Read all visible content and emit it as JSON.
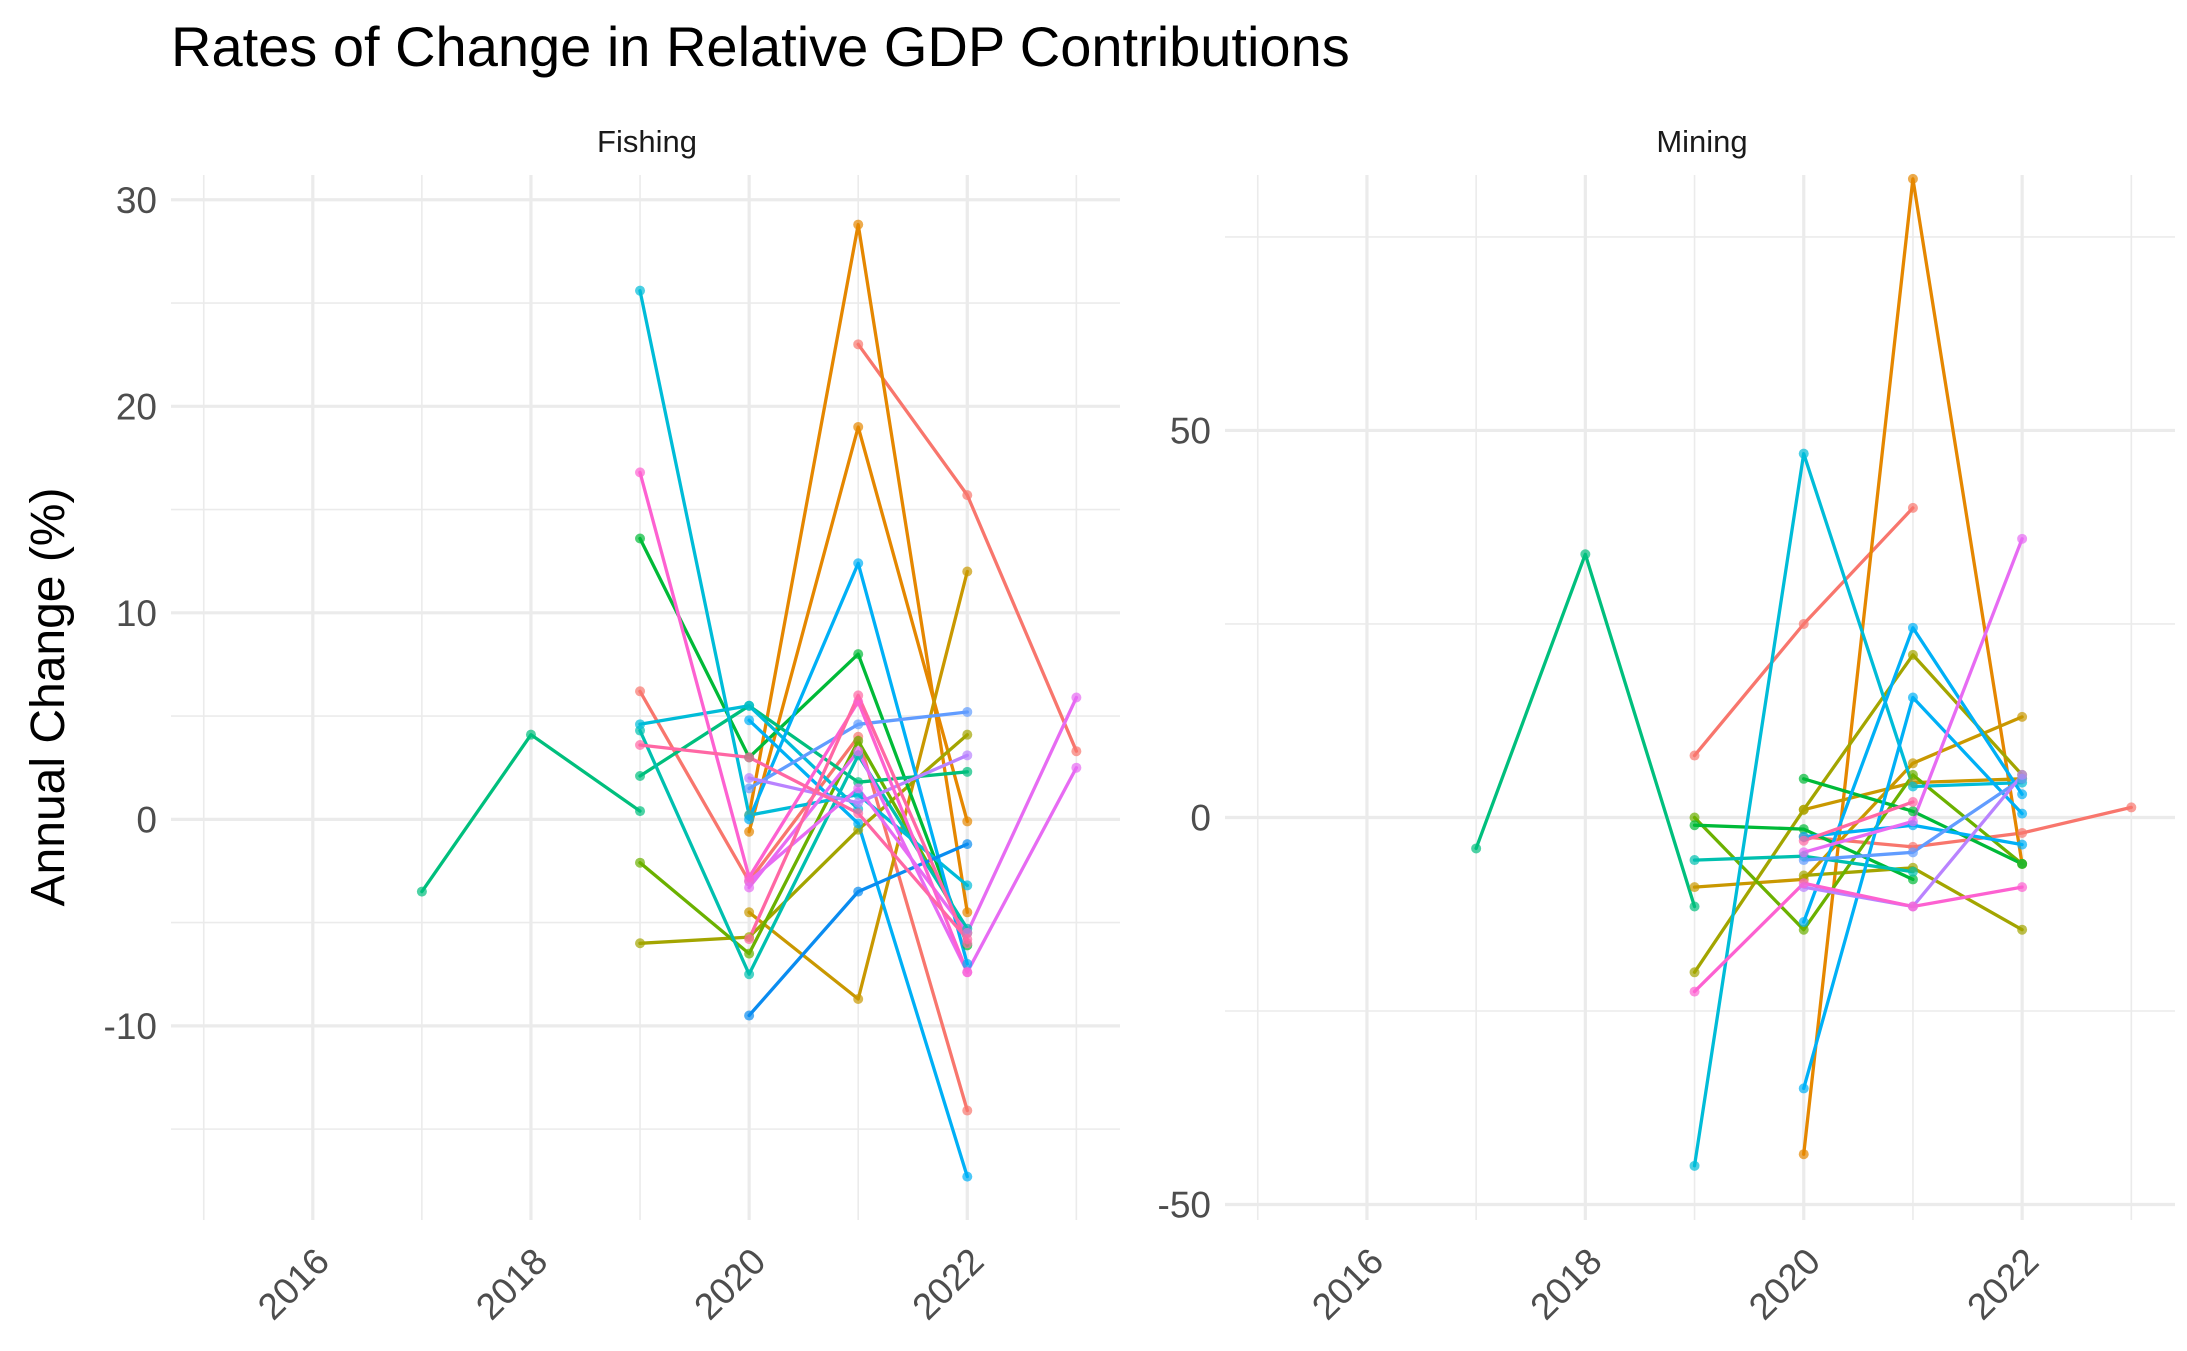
{
  "chart_data": {
    "type": "line",
    "title": "Rates of Change in Relative GDP Contributions",
    "ylabel": "Annual Change (%)",
    "xlabel": "",
    "grid": true,
    "legend": "none",
    "panels": [
      {
        "name": "Fishing",
        "xlim": [
          2014.7,
          2023.4
        ],
        "ylim": [
          -19.4,
          31.2
        ],
        "x_ticks": [
          "2016",
          "2018",
          "2020",
          "2022"
        ],
        "y_ticks": [
          "-10",
          "0",
          "10",
          "20",
          "30"
        ],
        "series": [
          {
            "color": "#F8766D",
            "points": [
              [
                2021,
                23.0
              ],
              [
                2022,
                15.7
              ],
              [
                2023,
                3.3
              ]
            ]
          },
          {
            "color": "#F8766D",
            "points": [
              [
                2019,
                6.2
              ],
              [
                2020,
                -3.0
              ],
              [
                2021,
                4.0
              ],
              [
                2022,
                -14.1
              ]
            ]
          },
          {
            "color": "#E58700",
            "points": [
              [
                2020,
                0.2
              ],
              [
                2021,
                28.8
              ],
              [
                2022,
                -4.5
              ]
            ]
          },
          {
            "color": "#E58700",
            "points": [
              [
                2020,
                -0.6
              ],
              [
                2021,
                19.0
              ],
              [
                2022,
                -0.1
              ]
            ]
          },
          {
            "color": "#C99800",
            "points": [
              [
                2020,
                -4.5
              ],
              [
                2021,
                -8.7
              ],
              [
                2022,
                12.0
              ]
            ]
          },
          {
            "color": "#A3A500",
            "points": [
              [
                2019,
                -6.0
              ],
              [
                2020,
                -5.7
              ],
              [
                2021,
                -0.5
              ],
              [
                2022,
                4.1
              ]
            ]
          },
          {
            "color": "#6BB100",
            "points": [
              [
                2019,
                -2.1
              ],
              [
                2020,
                -6.5
              ],
              [
                2021,
                3.8
              ],
              [
                2022,
                -5.5
              ]
            ]
          },
          {
            "color": "#00BA38",
            "points": [
              [
                2019,
                13.6
              ],
              [
                2020,
                3.0
              ],
              [
                2021,
                8.0
              ],
              [
                2022,
                -6.1
              ]
            ]
          },
          {
            "color": "#00BF7D",
            "points": [
              [
                2017,
                -3.5
              ],
              [
                2018,
                4.1
              ],
              [
                2019,
                0.4
              ]
            ]
          },
          {
            "color": "#00BF7D",
            "points": [
              [
                2019,
                2.1
              ],
              [
                2020,
                5.5
              ],
              [
                2021,
                1.8
              ],
              [
                2022,
                2.3
              ]
            ]
          },
          {
            "color": "#00C0AF",
            "points": [
              [
                2019,
                4.3
              ],
              [
                2020,
                -7.5
              ],
              [
                2021,
                3.1
              ],
              [
                2022,
                -5.3
              ]
            ]
          },
          {
            "color": "#00BCD8",
            "points": [
              [
                2019,
                25.6
              ],
              [
                2020,
                0.2
              ],
              [
                2021,
                1.2
              ],
              [
                2022,
                -3.2
              ]
            ]
          },
          {
            "color": "#00BCD8",
            "points": [
              [
                2019,
                4.6
              ],
              [
                2020,
                5.5
              ],
              [
                2021,
                0.5
              ]
            ]
          },
          {
            "color": "#00B0F6",
            "points": [
              [
                2020,
                4.8
              ],
              [
                2021,
                -0.2
              ],
              [
                2022,
                -17.3
              ]
            ]
          },
          {
            "color": "#00B0F6",
            "points": [
              [
                2020,
                0.0
              ],
              [
                2021,
                12.4
              ],
              [
                2022,
                -7.0
              ]
            ]
          },
          {
            "color": "#0A8CF0",
            "points": [
              [
                2020,
                -9.5
              ],
              [
                2021,
                -3.5
              ],
              [
                2022,
                -1.2
              ]
            ]
          },
          {
            "color": "#619CFF",
            "points": [
              [
                2020,
                1.5
              ],
              [
                2021,
                4.6
              ],
              [
                2022,
                5.2
              ]
            ]
          },
          {
            "color": "#B983FF",
            "points": [
              [
                2020,
                2.0
              ],
              [
                2021,
                0.8
              ],
              [
                2022,
                3.1
              ]
            ]
          },
          {
            "color": "#E76BF3",
            "points": [
              [
                2020,
                -3.3
              ],
              [
                2021,
                3.3
              ],
              [
                2022,
                -7.4
              ],
              [
                2023,
                2.5
              ]
            ]
          },
          {
            "color": "#E76BF3",
            "points": [
              [
                2020,
                -3.0
              ],
              [
                2021,
                1.5
              ],
              [
                2022,
                -5.5
              ],
              [
                2023,
                5.9
              ]
            ]
          },
          {
            "color": "#FD61D1",
            "points": [
              [
                2019,
                16.8
              ],
              [
                2020,
                -2.8
              ],
              [
                2021,
                5.7
              ],
              [
                2022,
                -7.4
              ]
            ]
          },
          {
            "color": "#FF67A4",
            "points": [
              [
                2019,
                3.6
              ],
              [
                2020,
                3.0
              ],
              [
                2021,
                0.3
              ],
              [
                2022,
                -5.8
              ]
            ]
          },
          {
            "color": "#FF67A4",
            "points": [
              [
                2020,
                -5.8
              ],
              [
                2021,
                6.0
              ],
              [
                2022,
                -6.0
              ]
            ]
          }
        ]
      },
      {
        "name": "Mining",
        "xlim": [
          2014.7,
          2023.4
        ],
        "ylim": [
          -52.0,
          83.0
        ],
        "x_ticks": [
          "2016",
          "2018",
          "2020",
          "2022"
        ],
        "y_ticks": [
          "-50",
          "0",
          "50"
        ],
        "series": [
          {
            "color": "#F8766D",
            "points": [
              [
                2019,
                8.0
              ],
              [
                2020,
                25.0
              ],
              [
                2021,
                40.0
              ]
            ]
          },
          {
            "color": "#F8766D",
            "points": [
              [
                2020,
                -2.5
              ],
              [
                2021,
                -3.8
              ],
              [
                2022,
                -2.0
              ],
              [
                2023,
                1.3
              ]
            ]
          },
          {
            "color": "#E58700",
            "points": [
              [
                2020,
                -43.5
              ],
              [
                2021,
                82.5
              ],
              [
                2022,
                -6.0
              ]
            ]
          },
          {
            "color": "#C99800",
            "points": [
              [
                2019,
                -9.0
              ],
              [
                2020,
                -8.0
              ],
              [
                2021,
                7.0
              ],
              [
                2022,
                13.0
              ]
            ]
          },
          {
            "color": "#C99800",
            "points": [
              [
                2020,
                1.0
              ],
              [
                2021,
                4.5
              ],
              [
                2022,
                5.0
              ]
            ]
          },
          {
            "color": "#A3A500",
            "points": [
              [
                2019,
                -20.0
              ],
              [
                2020,
                1.0
              ],
              [
                2021,
                21.0
              ],
              [
                2022,
                5.5
              ]
            ]
          },
          {
            "color": "#A3A500",
            "points": [
              [
                2020,
                -7.5
              ],
              [
                2021,
                -6.5
              ],
              [
                2022,
                -14.5
              ]
            ]
          },
          {
            "color": "#6BB100",
            "points": [
              [
                2019,
                0.0
              ],
              [
                2020,
                -14.5
              ],
              [
                2021,
                5.5
              ],
              [
                2022,
                -6.0
              ]
            ]
          },
          {
            "color": "#00BA38",
            "points": [
              [
                2019,
                -1.0
              ],
              [
                2020,
                -1.5
              ],
              [
                2021,
                -8.0
              ]
            ]
          },
          {
            "color": "#00BA38",
            "points": [
              [
                2020,
                5.0
              ],
              [
                2021,
                0.8
              ],
              [
                2022,
                -6.0
              ]
            ]
          },
          {
            "color": "#00BF7D",
            "points": [
              [
                2017,
                -4.0
              ],
              [
                2018,
                34.0
              ],
              [
                2019,
                -11.5
              ]
            ]
          },
          {
            "color": "#00C0AF",
            "points": [
              [
                2019,
                -5.5
              ],
              [
                2020,
                -5.0
              ],
              [
                2021,
                -7.0
              ]
            ]
          },
          {
            "color": "#00BCD8",
            "points": [
              [
                2019,
                -45.0
              ],
              [
                2020,
                47.0
              ],
              [
                2021,
                4.0
              ],
              [
                2022,
                4.5
              ]
            ]
          },
          {
            "color": "#00B0F6",
            "points": [
              [
                2020,
                -13.5
              ],
              [
                2021,
                24.5
              ],
              [
                2022,
                3.0
              ]
            ]
          },
          {
            "color": "#00B0F6",
            "points": [
              [
                2020,
                -35.0
              ],
              [
                2021,
                15.5
              ],
              [
                2022,
                0.5
              ]
            ]
          },
          {
            "color": "#00B0F6",
            "points": [
              [
                2020,
                -2.5
              ],
              [
                2021,
                -1.0
              ],
              [
                2022,
                -3.5
              ]
            ]
          },
          {
            "color": "#619CFF",
            "points": [
              [
                2020,
                -5.5
              ],
              [
                2021,
                -4.5
              ],
              [
                2022,
                5.0
              ]
            ]
          },
          {
            "color": "#B983FF",
            "points": [
              [
                2020,
                -9.0
              ],
              [
                2021,
                -11.5
              ],
              [
                2022,
                5.5
              ]
            ]
          },
          {
            "color": "#E76BF3",
            "points": [
              [
                2020,
                -4.5
              ],
              [
                2021,
                -0.5
              ],
              [
                2022,
                36.0
              ]
            ]
          },
          {
            "color": "#FD61D1",
            "points": [
              [
                2019,
                -22.5
              ],
              [
                2020,
                -8.5
              ],
              [
                2021,
                -11.5
              ],
              [
                2022,
                -9.0
              ]
            ]
          },
          {
            "color": "#FF67A4",
            "points": [
              [
                2020,
                -3.0
              ],
              [
                2021,
                2.0
              ]
            ]
          }
        ]
      }
    ]
  }
}
